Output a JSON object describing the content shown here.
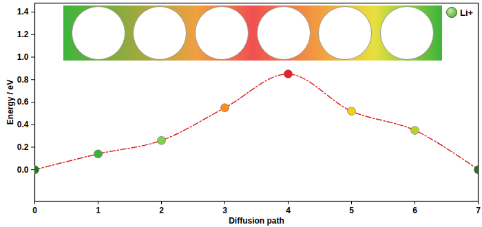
{
  "chart_data": {
    "type": "line",
    "x_label": "Diffusion path",
    "y_label": "Energy / eV",
    "x": [
      0,
      1,
      2,
      3,
      4,
      5,
      6,
      7
    ],
    "values": [
      0.0,
      0.14,
      0.26,
      0.55,
      0.85,
      0.52,
      0.35,
      0.0
    ],
    "color": "#e02020",
    "colors": [
      "#1a7a1a",
      "#3cb33c",
      "#7fd04a",
      "#ff8c1a",
      "#e8202a",
      "#f0d020",
      "#b5d430",
      "#1a7a1a"
    ],
    "marker": "circle",
    "line_style": "dashdot",
    "xlim": [
      0,
      7
    ],
    "xticks": [
      0,
      1,
      2,
      3,
      4,
      5,
      6,
      7
    ],
    "ylim": [
      -0.28,
      1.48
    ],
    "yticks": [
      {
        "value": 0.0,
        "label": "0.0"
      },
      {
        "value": 0.2,
        "label": "0.2"
      },
      {
        "value": 0.4,
        "label": "0.4"
      },
      {
        "value": 0.6,
        "label": "0.6"
      },
      {
        "value": 0.8,
        "label": "0.8"
      },
      {
        "value": 1.0,
        "label": "1.0"
      },
      {
        "value": 1.2,
        "label": "1.2"
      },
      {
        "value": 1.4,
        "label": "1.4"
      }
    ],
    "grid": false,
    "annotations": [
      "Li+"
    ]
  }
}
